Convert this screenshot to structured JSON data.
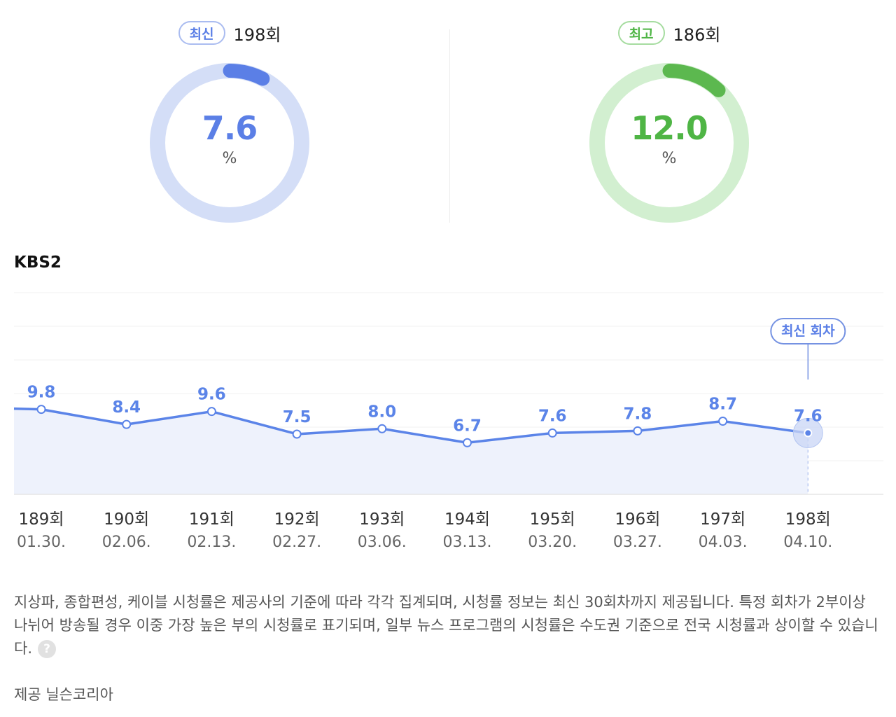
{
  "summary": {
    "latest": {
      "badge": "최신",
      "episode": "198회",
      "value": "7.6",
      "unit": "%",
      "ratio": 0.076,
      "color": "#5b7fe6",
      "track": "#d4def7"
    },
    "best": {
      "badge": "최고",
      "episode": "186회",
      "value": "12.0",
      "unit": "%",
      "ratio": 0.12,
      "color": "#5cb84f",
      "track": "#d2efd0"
    }
  },
  "channel": "KBS2",
  "chart_data": {
    "type": "area",
    "categories": [
      "189회",
      "190회",
      "191회",
      "192회",
      "193회",
      "194회",
      "195회",
      "196회",
      "197회",
      "198회"
    ],
    "dates": [
      "01.30.",
      "02.06.",
      "02.13.",
      "02.27.",
      "03.06.",
      "03.13.",
      "03.20.",
      "03.27.",
      "04.03.",
      "04.10."
    ],
    "values": [
      9.8,
      8.4,
      9.6,
      7.5,
      8.0,
      6.7,
      7.6,
      7.8,
      8.7,
      7.6
    ],
    "highlight_label": "최신 회차",
    "line_color": "#5b84e8",
    "fill_color": "#eef2fc",
    "grid": true
  },
  "note": "지상파, 종합편성, 케이블 시청률은 제공사의 기준에 따라 각각 집계되며, 시청률 정보는 최신 30회차까지 제공됩니다. 특정 회차가 2부이상 나뉘어 방송될 경우 이중 가장 높은 부의 시청률로 표기되며, 일부 뉴스 프로그램의 시청률은 수도권 기준으로 전국 시청률과 상이할 수 있습니다.",
  "help_glyph": "?",
  "source": "제공 닐슨코리아"
}
